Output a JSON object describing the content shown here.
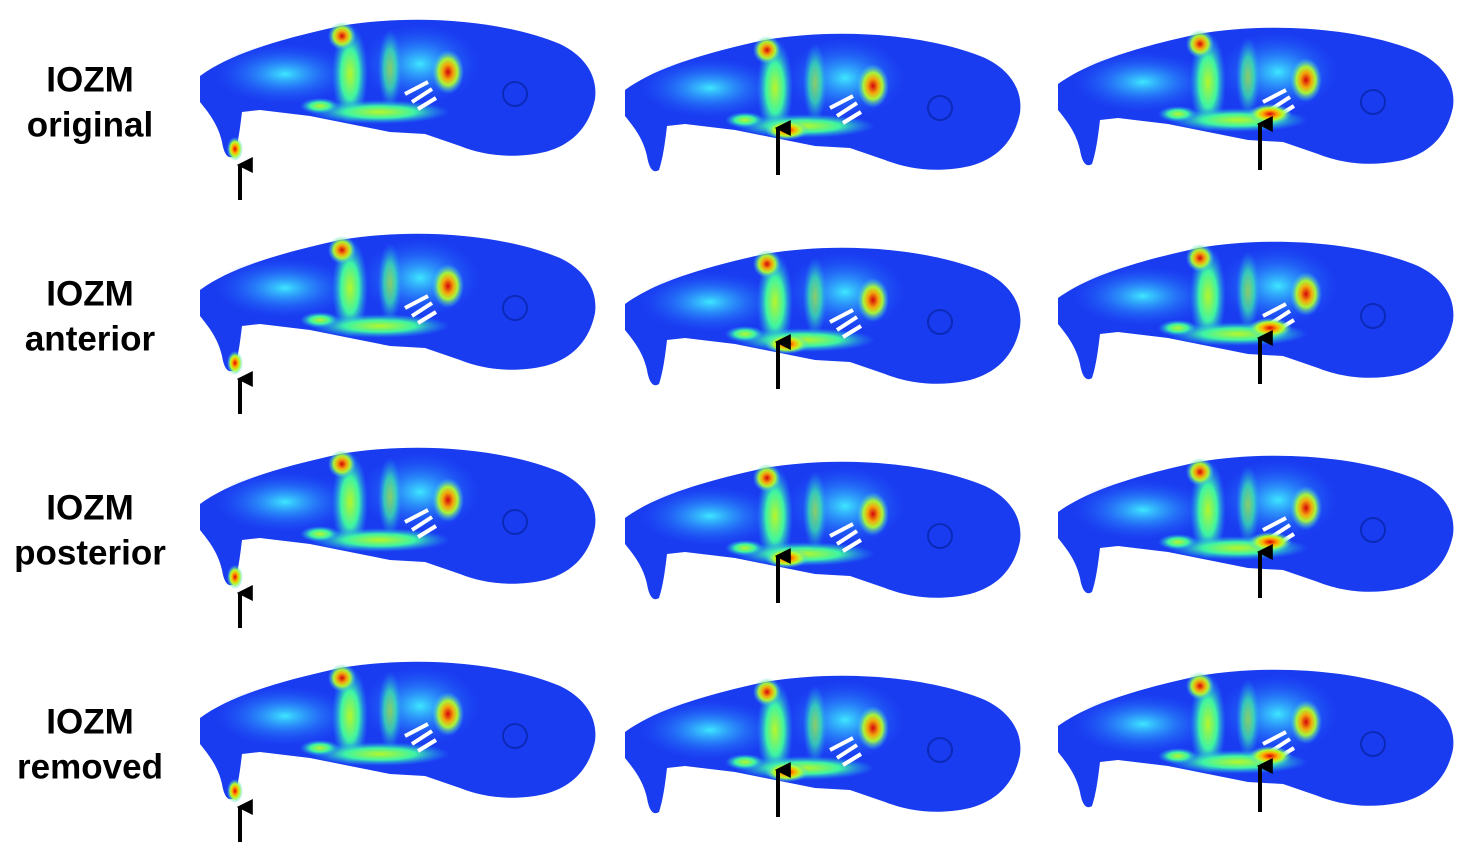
{
  "rows": [
    {
      "lines": [
        "IOZM",
        "original"
      ]
    },
    {
      "lines": [
        "IOZM",
        "anterior"
      ]
    },
    {
      "lines": [
        "IOZM",
        "posterior"
      ]
    },
    {
      "lines": [
        "IOZM",
        "removed"
      ]
    }
  ]
}
